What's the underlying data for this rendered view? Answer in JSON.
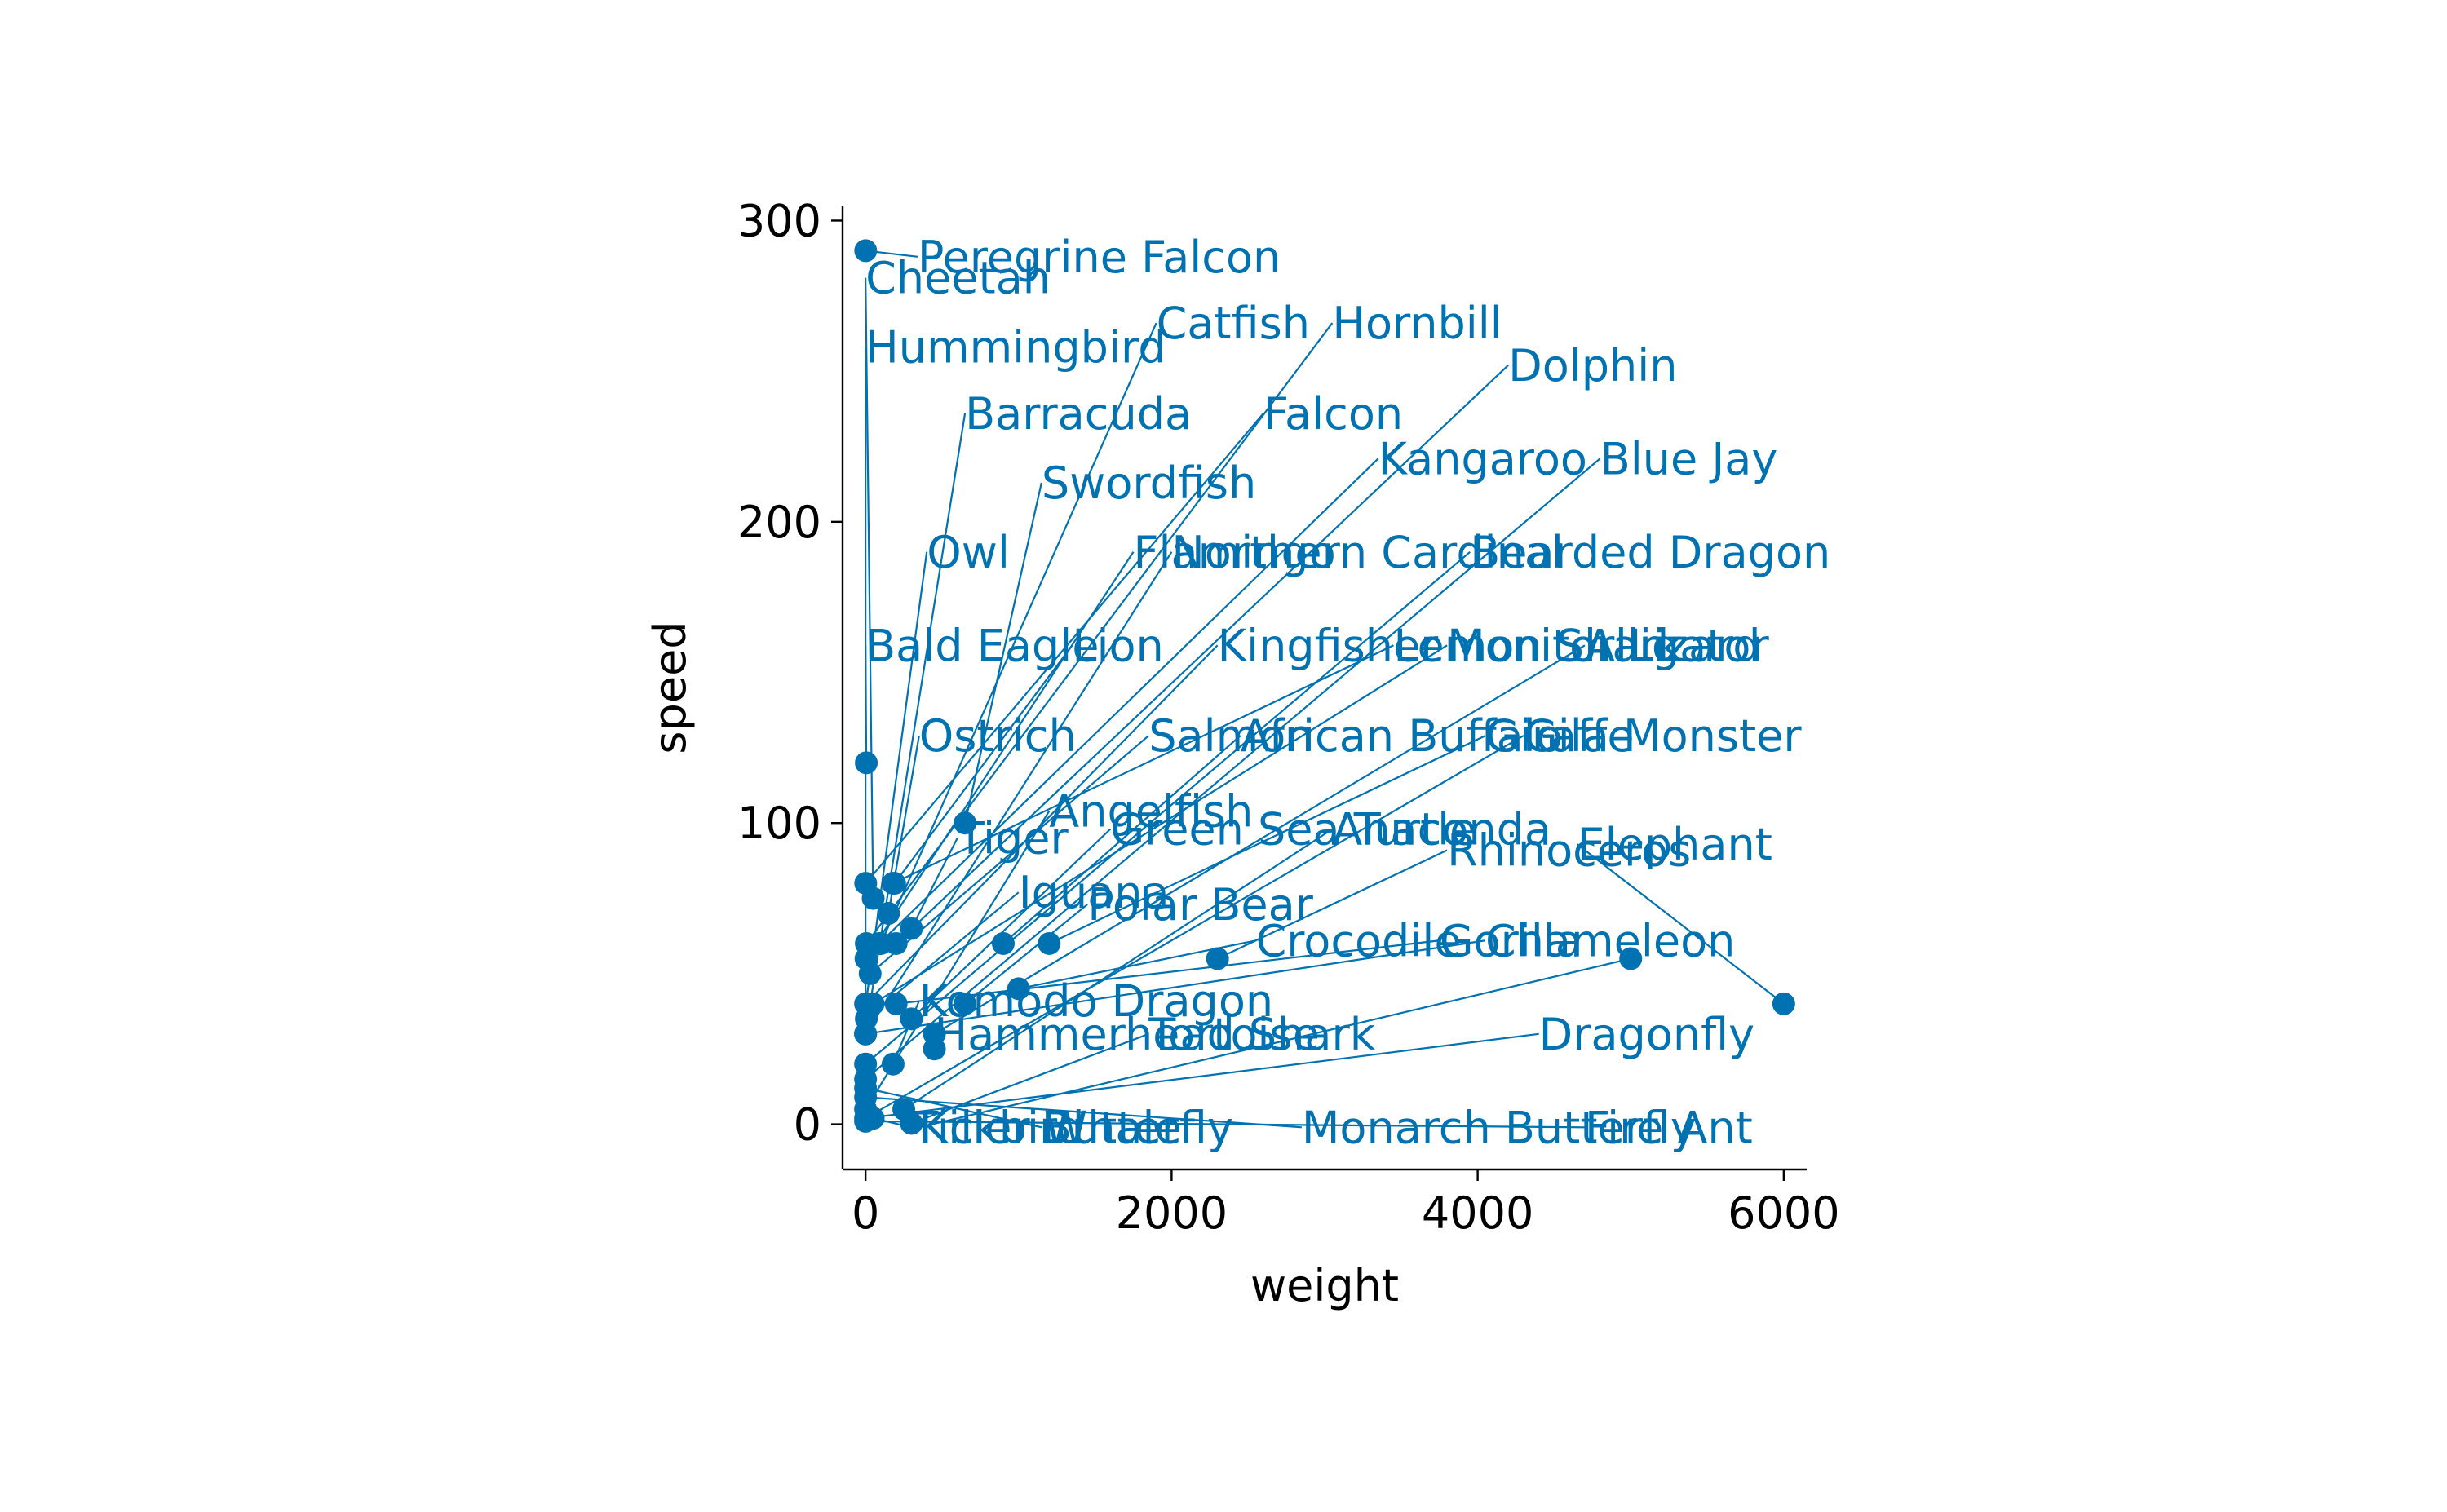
{
  "chart_data": {
    "type": "scatter",
    "title": "",
    "xlabel": "weight",
    "ylabel": "speed",
    "xlim": [
      -150,
      6150
    ],
    "ylim": [
      -15,
      305
    ],
    "xticks": [
      0,
      2000,
      4000,
      6000
    ],
    "yticks": [
      0,
      100,
      200,
      300
    ],
    "grid": false,
    "color": "#0072B2",
    "points": [
      {
        "label": "Peregrine Falcon",
        "x": 1,
        "y": 290,
        "lx": 340,
        "ly": 288
      },
      {
        "label": "Cheetah",
        "x": 50,
        "y": 75,
        "lx": 0,
        "ly": 281
      },
      {
        "label": "Hummingbird",
        "x": 0,
        "y": 30,
        "lx": 0,
        "ly": 258
      },
      {
        "label": "Catfish",
        "x": 100,
        "y": 60,
        "lx": 1900,
        "ly": 266
      },
      {
        "label": "Hornbill",
        "x": 5,
        "y": 60,
        "lx": 3050,
        "ly": 266
      },
      {
        "label": "Dolphin",
        "x": 200,
        "y": 60,
        "lx": 4200,
        "ly": 252
      },
      {
        "label": "Barracuda",
        "x": 30,
        "y": 40,
        "lx": 650,
        "ly": 236
      },
      {
        "label": "Falcon",
        "x": 1,
        "y": 80,
        "lx": 2600,
        "ly": 236
      },
      {
        "label": "Kangaroo",
        "x": 90,
        "y": 60,
        "lx": 3350,
        "ly": 221
      },
      {
        "label": "Blue Jay",
        "x": 0,
        "y": 15,
        "lx": 4800,
        "ly": 221
      },
      {
        "label": "Swordfish",
        "x": 650,
        "y": 100,
        "lx": 1150,
        "ly": 213
      },
      {
        "label": "Owl",
        "x": 2,
        "y": 40,
        "lx": 400,
        "ly": 190
      },
      {
        "label": "Flamingo",
        "x": 3,
        "y": 55,
        "lx": 1750,
        "ly": 190
      },
      {
        "label": "Northern Cardinal",
        "x": 0,
        "y": 30,
        "lx": 2000,
        "ly": 190
      },
      {
        "label": "Bearded Dragon",
        "x": 0,
        "y": 20,
        "lx": 3950,
        "ly": 190
      },
      {
        "label": "Bald Eagle",
        "x": 5,
        "y": 120,
        "lx": 0,
        "ly": 159
      },
      {
        "label": "Lion",
        "x": 190,
        "y": 80,
        "lx": 1350,
        "ly": 159
      },
      {
        "label": "Kingfisher",
        "x": 0,
        "y": 40,
        "lx": 2300,
        "ly": 159
      },
      {
        "label": "Lemon Shark",
        "x": 180,
        "y": 80,
        "lx": 3450,
        "ly": 159
      },
      {
        "label": "Monitor Lizard",
        "x": 50,
        "y": 40,
        "lx": 3800,
        "ly": 159
      },
      {
        "label": "Alligator",
        "x": 450,
        "y": 30,
        "lx": 4700,
        "ly": 159
      },
      {
        "label": "Ostrich",
        "x": 150,
        "y": 70,
        "lx": 350,
        "ly": 129
      },
      {
        "label": "Salmon",
        "x": 30,
        "y": 50,
        "lx": 1850,
        "ly": 129
      },
      {
        "label": "African Buffalo",
        "x": 900,
        "y": 60,
        "lx": 2450,
        "ly": 129
      },
      {
        "label": "Giraffe",
        "x": 1200,
        "y": 60,
        "lx": 4050,
        "ly": 129
      },
      {
        "label": "Gila Monster",
        "x": 2,
        "y": 2,
        "lx": 4300,
        "ly": 129
      },
      {
        "label": "Angelfish",
        "x": 0,
        "y": 5,
        "lx": 1200,
        "ly": 104
      },
      {
        "label": "Green Sea Turtle",
        "x": 300,
        "y": 35,
        "lx": 1600,
        "ly": 98
      },
      {
        "label": "Anaconda",
        "x": 250,
        "y": 5,
        "lx": 3050,
        "ly": 98
      },
      {
        "label": "Tiger",
        "x": 300,
        "y": 65,
        "lx": 600,
        "ly": 95
      },
      {
        "label": "Rhinoceros",
        "x": 2300,
        "y": 55,
        "lx": 3800,
        "ly": 91
      },
      {
        "label": "Elephant",
        "x": 6000,
        "y": 40,
        "lx": 4650,
        "ly": 93
      },
      {
        "label": "Iguana",
        "x": 5,
        "y": 35,
        "lx": 1000,
        "ly": 77
      },
      {
        "label": "Polar Bear",
        "x": 650,
        "y": 40,
        "lx": 1450,
        "ly": 73
      },
      {
        "label": "Crocodile",
        "x": 1000,
        "y": 45,
        "lx": 2550,
        "ly": 61
      },
      {
        "label": "Gorilla",
        "x": 200,
        "y": 40,
        "lx": 3750,
        "ly": 61
      },
      {
        "label": "Chameleon",
        "x": 0,
        "y": 30,
        "lx": 4050,
        "ly": 61
      },
      {
        "label": "Komodo Dragon",
        "x": 180,
        "y": 20,
        "lx": 350,
        "ly": 41
      },
      {
        "label": "Hammerhead Shark",
        "x": 450,
        "y": 25,
        "lx": 450,
        "ly": 30
      },
      {
        "label": "Tortoise",
        "x": 300,
        "y": 0.3,
        "lx": 1850,
        "ly": 30
      },
      {
        "label": "Dragonfly",
        "x": 0,
        "y": 2,
        "lx": 4400,
        "ly": 30
      },
      {
        "label": "Tickbird",
        "x": 50,
        "y": 2,
        "lx": 300,
        "ly": -1
      },
      {
        "label": "Killer Whale",
        "x": 5000,
        "y": 55,
        "lx": 350,
        "ly": -1
      },
      {
        "label": "Butterfly",
        "x": 0,
        "y": 12,
        "lx": 1150,
        "ly": -1
      },
      {
        "label": "Monarch Butterfly",
        "x": 0,
        "y": 9,
        "lx": 2850,
        "ly": -1
      },
      {
        "label": "Fire Ant",
        "x": 0,
        "y": 1,
        "lx": 4700,
        "ly": -1
      }
    ]
  }
}
